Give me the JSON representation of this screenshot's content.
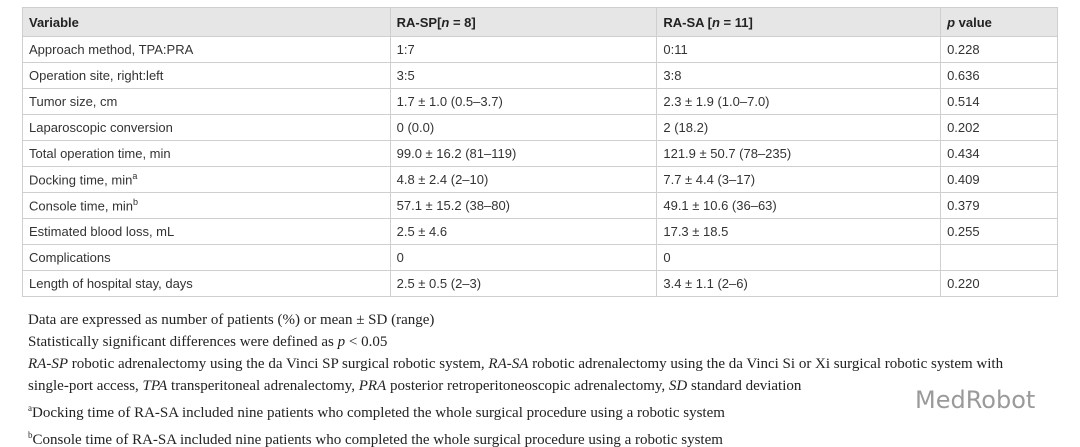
{
  "table": {
    "header": [
      "Variable",
      [
        {
          "text": "RA-SP["
        },
        {
          "text": "n",
          "italic": true
        },
        {
          "text": " = 8]"
        }
      ],
      [
        {
          "text": "RA-SA ["
        },
        {
          "text": "n",
          "italic": true
        },
        {
          "text": " = 11]"
        }
      ],
      [
        {
          "text": "p",
          "italic": true
        },
        {
          "text": " value"
        }
      ]
    ],
    "rows": [
      [
        "Approach method, TPA:PRA",
        "1:7",
        "0:11",
        "0.228"
      ],
      [
        "Operation site, right:left",
        "3:5",
        "3:8",
        "0.636"
      ],
      [
        "Tumor size, cm",
        "1.7 ± 1.0 (0.5–3.7)",
        "2.3 ± 1.9 (1.0–7.0)",
        "0.514"
      ],
      [
        "Laparoscopic conversion",
        "0 (0.0)",
        "2 (18.2)",
        "0.202"
      ],
      [
        "Total operation time, min",
        "99.0 ± 16.2 (81–119)",
        "121.9 ± 50.7 (78–235)",
        "0.434"
      ],
      [
        [
          {
            "text": " Docking time, min"
          },
          {
            "text": "a",
            "sup": true
          }
        ],
        "4.8 ± 2.4 (2–10)",
        "7.7 ± 4.4 (3–17)",
        "0.409"
      ],
      [
        [
          {
            "text": " Console time, min"
          },
          {
            "text": "b",
            "sup": true
          }
        ],
        "57.1 ± 15.2 (38–80)",
        "49.1 ± 10.6 (36–63)",
        "0.379"
      ],
      [
        "Estimated blood loss, mL",
        "2.5 ± 4.6",
        "17.3 ± 18.5",
        "0.255"
      ],
      [
        "Complications",
        "0",
        "0",
        null
      ],
      [
        "Length of hospital stay, days",
        "2.5 ± 0.5 (2–3)",
        "3.4 ± 1.1 (2–6)",
        "0.220"
      ]
    ]
  },
  "notes": [
    [
      {
        "text": "Data are expressed as number of patients (%) or mean ± SD (range)"
      }
    ],
    [
      {
        "text": "Statistically significant differences were defined as "
      },
      {
        "text": "p",
        "italic": true
      },
      {
        "text": " < 0.05"
      }
    ],
    [
      {
        "text": "RA-SP",
        "italic": true
      },
      {
        "text": " robotic adrenalectomy using the da Vinci SP surgical robotic system, "
      },
      {
        "text": "RA-SA",
        "italic": true
      },
      {
        "text": " robotic adrenalectomy using the da Vinci Si or Xi surgical robotic system with single-port access, "
      },
      {
        "text": "TPA",
        "italic": true
      },
      {
        "text": " transperitoneal adrenalectomy, "
      },
      {
        "text": "PRA",
        "italic": true
      },
      {
        "text": " posterior retroperitoneoscopic adrenalectomy, "
      },
      {
        "text": "SD",
        "italic": true
      },
      {
        "text": " standard deviation"
      }
    ],
    [
      {
        "text": "a",
        "sup": true
      },
      {
        "text": "Docking time of RA-SA included nine patients who completed the whole surgical procedure using a robotic system"
      }
    ],
    [
      {
        "text": "b",
        "sup": true
      },
      {
        "text": "Console time of RA-SA included nine patients who completed the whole surgical procedure using a robotic system"
      }
    ]
  ],
  "watermark": "MedRobot"
}
